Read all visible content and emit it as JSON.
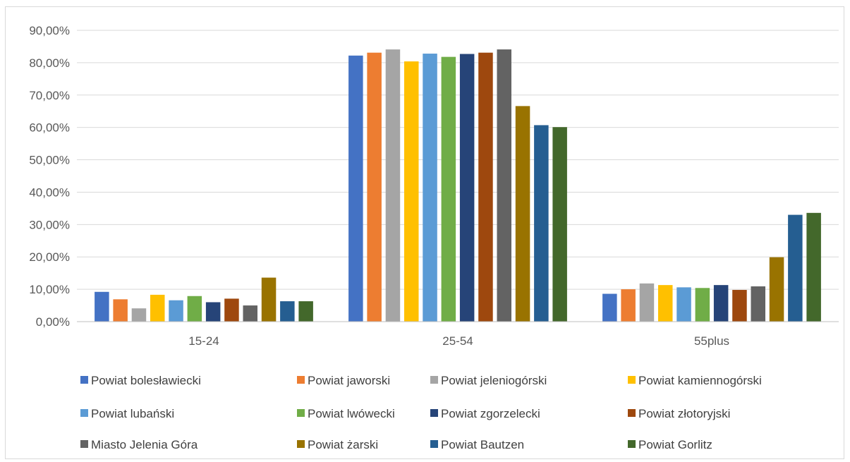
{
  "chart_data": {
    "type": "bar",
    "title": "",
    "xlabel": "",
    "ylabel": "",
    "categories": [
      "15-24",
      "25-54",
      "55plus"
    ],
    "ylim": [
      0,
      90
    ],
    "yticks": [
      0,
      10,
      20,
      30,
      40,
      50,
      60,
      70,
      80,
      90
    ],
    "ytick_labels": [
      "0,00%",
      "10,00%",
      "20,00%",
      "30,00%",
      "40,00%",
      "50,00%",
      "60,00%",
      "70,00%",
      "80,00%",
      "90,00%"
    ],
    "grid": "horizontal",
    "legend_position": "bottom",
    "series": [
      {
        "name": "Powiat bolesławiecki",
        "color": "#4472c4",
        "values": [
          9.2,
          82.2,
          8.6
        ]
      },
      {
        "name": "Powiat jaworski",
        "color": "#ed7d31",
        "values": [
          6.9,
          83.1,
          10.0
        ]
      },
      {
        "name": "Powiat jeleniogórski",
        "color": "#a5a5a5",
        "values": [
          4.1,
          84.1,
          11.8
        ]
      },
      {
        "name": "Powiat kamiennogórski",
        "color": "#ffc000",
        "values": [
          8.3,
          80.4,
          11.3
        ]
      },
      {
        "name": "Powiat lubański",
        "color": "#5b9bd5",
        "values": [
          6.6,
          82.8,
          10.6
        ]
      },
      {
        "name": "Powiat lwówecki",
        "color": "#70ad47",
        "values": [
          7.9,
          81.8,
          10.4
        ]
      },
      {
        "name": "Powiat zgorzelecki",
        "color": "#264478",
        "values": [
          6.0,
          82.7,
          11.3
        ]
      },
      {
        "name": "Powiat złotoryjski",
        "color": "#9e480e",
        "values": [
          7.1,
          83.1,
          9.8
        ]
      },
      {
        "name": "Miasto Jelenia Góra",
        "color": "#636363",
        "values": [
          5.0,
          84.1,
          10.9
        ]
      },
      {
        "name": "Powiat żarski",
        "color": "#997300",
        "values": [
          13.6,
          66.6,
          19.9
        ]
      },
      {
        "name": "Powiat Bautzen",
        "color": "#255e91",
        "values": [
          6.3,
          60.7,
          33.0
        ]
      },
      {
        "name": "Powiat Gorlitz",
        "color": "#43682b",
        "values": [
          6.3,
          60.1,
          33.6
        ]
      }
    ]
  }
}
